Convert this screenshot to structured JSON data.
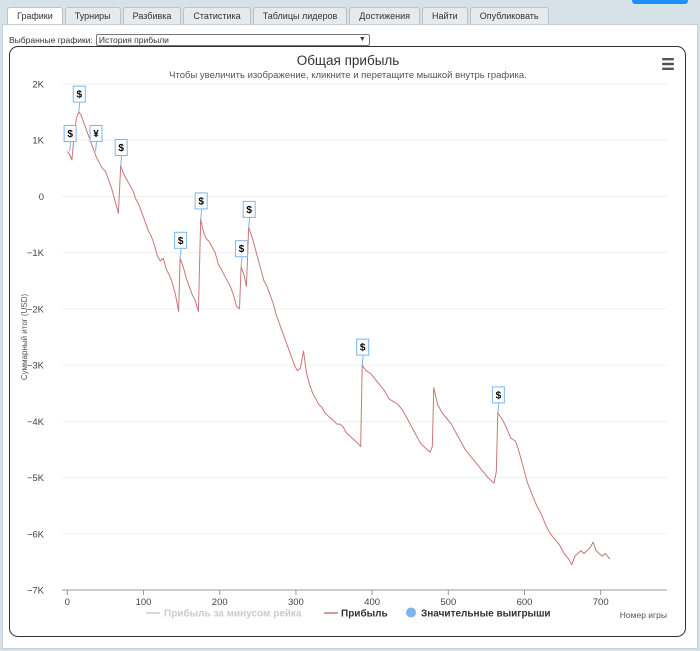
{
  "tabs": [
    {
      "label": "Графики",
      "active": true
    },
    {
      "label": "Турниры",
      "active": false
    },
    {
      "label": "Разбивка",
      "active": false
    },
    {
      "label": "Статистика",
      "active": false
    },
    {
      "label": "Таблицы лидеров",
      "active": false
    },
    {
      "label": "Достижения",
      "active": false
    },
    {
      "label": "Найти",
      "active": false
    },
    {
      "label": "Опубликовать",
      "active": false
    }
  ],
  "chart_selector": {
    "label": "Выбранные графики:",
    "value": "История прибыли"
  },
  "chart_data": {
    "type": "line",
    "title": "Общая прибыль",
    "subtitle": "Чтобы увеличить изображение, кликните и перетащите мышкой внутрь графика.",
    "xlabel": "Номер игры",
    "ylabel": "Суммарный итог (USD)",
    "xlim": [
      -7,
      787
    ],
    "ylim": [
      -7000,
      2000
    ],
    "x_ticks": [
      0,
      100,
      200,
      300,
      400,
      500,
      600,
      700
    ],
    "y_ticks": [
      2000,
      1000,
      0,
      -1000,
      -2000,
      -3000,
      -4000,
      -5000,
      -6000,
      -7000
    ],
    "y_tick_labels": [
      "2K",
      "1K",
      "0",
      "−1K",
      "−2K",
      "−3K",
      "−4K",
      "−5K",
      "−6K",
      "−7K"
    ],
    "grid": true,
    "legend_position": "bottom",
    "series": [
      {
        "name": "Прибыль за минусом рейка",
        "color": "#cccccc",
        "visible": false,
        "values": []
      },
      {
        "name": "Прибыль",
        "color": "#c87878",
        "points": [
          [
            0,
            800
          ],
          [
            3,
            750
          ],
          [
            6,
            650
          ],
          [
            9,
            1100
          ],
          [
            12,
            1400
          ],
          [
            15,
            1500
          ],
          [
            18,
            1450
          ],
          [
            22,
            1300
          ],
          [
            26,
            1150
          ],
          [
            30,
            1000
          ],
          [
            34,
            850
          ],
          [
            38,
            700
          ],
          [
            42,
            600
          ],
          [
            46,
            500
          ],
          [
            50,
            450
          ],
          [
            54,
            300
          ],
          [
            58,
            150
          ],
          [
            61,
            0
          ],
          [
            64,
            -150
          ],
          [
            67,
            -300
          ],
          [
            70,
            550
          ],
          [
            74,
            400
          ],
          [
            78,
            300
          ],
          [
            82,
            200
          ],
          [
            86,
            100
          ],
          [
            90,
            -50
          ],
          [
            94,
            -150
          ],
          [
            98,
            -300
          ],
          [
            102,
            -450
          ],
          [
            106,
            -600
          ],
          [
            110,
            -700
          ],
          [
            114,
            -850
          ],
          [
            118,
            -1050
          ],
          [
            122,
            -1150
          ],
          [
            126,
            -1100
          ],
          [
            130,
            -1300
          ],
          [
            134,
            -1400
          ],
          [
            138,
            -1550
          ],
          [
            142,
            -1750
          ],
          [
            146,
            -2050
          ],
          [
            148,
            -1100
          ],
          [
            152,
            -1250
          ],
          [
            156,
            -1450
          ],
          [
            160,
            -1600
          ],
          [
            164,
            -1750
          ],
          [
            168,
            -1850
          ],
          [
            172,
            -2050
          ],
          [
            175,
            -400
          ],
          [
            178,
            -600
          ],
          [
            182,
            -750
          ],
          [
            186,
            -800
          ],
          [
            190,
            -900
          ],
          [
            194,
            -1000
          ],
          [
            198,
            -1200
          ],
          [
            202,
            -1300
          ],
          [
            206,
            -1400
          ],
          [
            210,
            -1500
          ],
          [
            214,
            -1600
          ],
          [
            218,
            -1750
          ],
          [
            222,
            -1950
          ],
          [
            226,
            -2000
          ],
          [
            228,
            -1250
          ],
          [
            232,
            -1400
          ],
          [
            235,
            -1600
          ],
          [
            238,
            -550
          ],
          [
            242,
            -700
          ],
          [
            246,
            -900
          ],
          [
            250,
            -1100
          ],
          [
            254,
            -1300
          ],
          [
            258,
            -1500
          ],
          [
            262,
            -1600
          ],
          [
            266,
            -1750
          ],
          [
            270,
            -1900
          ],
          [
            274,
            -2100
          ],
          [
            278,
            -2250
          ],
          [
            282,
            -2400
          ],
          [
            286,
            -2550
          ],
          [
            290,
            -2700
          ],
          [
            294,
            -2850
          ],
          [
            298,
            -3000
          ],
          [
            302,
            -3100
          ],
          [
            306,
            -3050
          ],
          [
            310,
            -2750
          ],
          [
            314,
            -3150
          ],
          [
            318,
            -3350
          ],
          [
            322,
            -3500
          ],
          [
            326,
            -3600
          ],
          [
            330,
            -3700
          ],
          [
            334,
            -3750
          ],
          [
            338,
            -3850
          ],
          [
            342,
            -3900
          ],
          [
            346,
            -3950
          ],
          [
            350,
            -4000
          ],
          [
            354,
            -4050
          ],
          [
            358,
            -4050
          ],
          [
            362,
            -4100
          ],
          [
            366,
            -4200
          ],
          [
            370,
            -4250
          ],
          [
            374,
            -4300
          ],
          [
            378,
            -4350
          ],
          [
            382,
            -4400
          ],
          [
            385,
            -4450
          ],
          [
            387,
            -3000
          ],
          [
            392,
            -3100
          ],
          [
            398,
            -3150
          ],
          [
            404,
            -3250
          ],
          [
            410,
            -3350
          ],
          [
            416,
            -3450
          ],
          [
            422,
            -3600
          ],
          [
            428,
            -3650
          ],
          [
            434,
            -3700
          ],
          [
            440,
            -3800
          ],
          [
            446,
            -3950
          ],
          [
            452,
            -4100
          ],
          [
            456,
            -4200
          ],
          [
            460,
            -4300
          ],
          [
            464,
            -4400
          ],
          [
            468,
            -4450
          ],
          [
            472,
            -4500
          ],
          [
            476,
            -4550
          ],
          [
            479,
            -4450
          ],
          [
            481,
            -3400
          ],
          [
            486,
            -3700
          ],
          [
            492,
            -3850
          ],
          [
            498,
            -3950
          ],
          [
            504,
            -4050
          ],
          [
            510,
            -4200
          ],
          [
            516,
            -4350
          ],
          [
            522,
            -4500
          ],
          [
            528,
            -4600
          ],
          [
            534,
            -4700
          ],
          [
            540,
            -4800
          ],
          [
            546,
            -4900
          ],
          [
            552,
            -5000
          ],
          [
            556,
            -5050
          ],
          [
            560,
            -5100
          ],
          [
            563,
            -4900
          ],
          [
            565,
            -3850
          ],
          [
            570,
            -3950
          ],
          [
            576,
            -4100
          ],
          [
            582,
            -4300
          ],
          [
            588,
            -4350
          ],
          [
            592,
            -4500
          ],
          [
            598,
            -4800
          ],
          [
            604,
            -5100
          ],
          [
            610,
            -5300
          ],
          [
            616,
            -5500
          ],
          [
            622,
            -5650
          ],
          [
            628,
            -5850
          ],
          [
            634,
            -6000
          ],
          [
            640,
            -6100
          ],
          [
            646,
            -6200
          ],
          [
            652,
            -6350
          ],
          [
            658,
            -6450
          ],
          [
            662,
            -6550
          ],
          [
            666,
            -6400
          ],
          [
            670,
            -6350
          ],
          [
            674,
            -6300
          ],
          [
            678,
            -6350
          ],
          [
            682,
            -6300
          ],
          [
            686,
            -6250
          ],
          [
            690,
            -6150
          ],
          [
            694,
            -6300
          ],
          [
            698,
            -6350
          ],
          [
            702,
            -6400
          ],
          [
            706,
            -6350
          ],
          [
            709,
            -6400
          ],
          [
            712,
            -6450
          ]
        ]
      },
      {
        "name": "Значительные выигрыши",
        "color": "#7cb5ec",
        "values": []
      }
    ],
    "flags": [
      {
        "x": 3,
        "y": 800,
        "text": "$"
      },
      {
        "x": 15,
        "y": 1500,
        "text": "$"
      },
      {
        "x": 37,
        "y": 800,
        "text": "¥"
      },
      {
        "x": 70,
        "y": 550,
        "text": "$"
      },
      {
        "x": 148,
        "y": -1100,
        "text": "$"
      },
      {
        "x": 175,
        "y": -400,
        "text": "$"
      },
      {
        "x": 228,
        "y": -1250,
        "text": "$"
      },
      {
        "x": 238,
        "y": -550,
        "text": "$"
      },
      {
        "x": 387,
        "y": -3000,
        "text": "$"
      },
      {
        "x": 565,
        "y": -3850,
        "text": "$"
      }
    ]
  },
  "icons": {
    "menu": "hamburger-menu-icon",
    "select_arrow": "chevron-down-icon"
  }
}
